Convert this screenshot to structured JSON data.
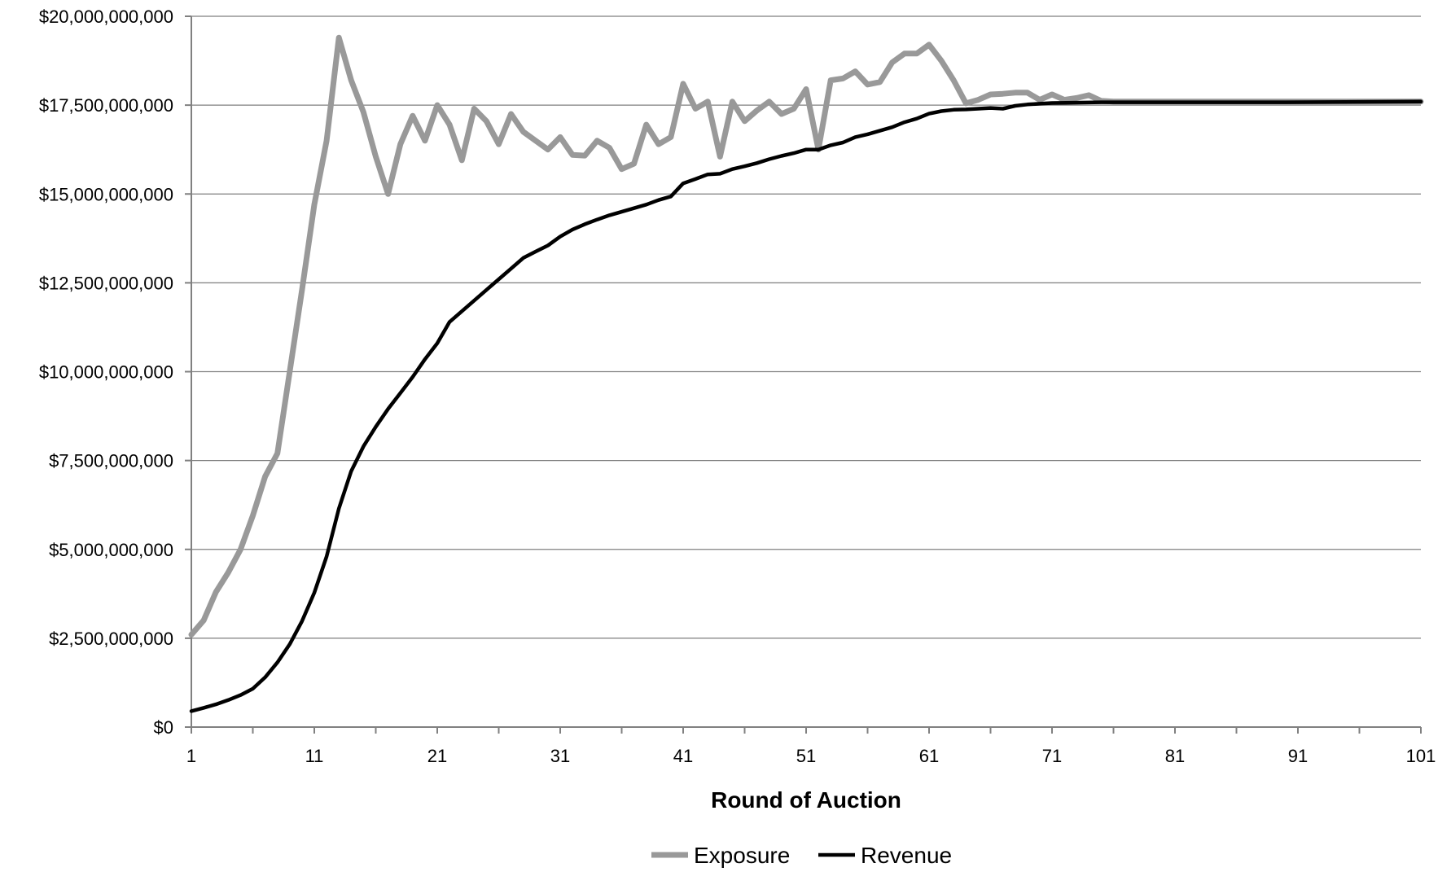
{
  "chart_data": {
    "type": "line",
    "title": "",
    "xlabel": "Round of Auction",
    "ylabel": "",
    "x_ticks": [
      "1",
      "11",
      "21",
      "31",
      "41",
      "51",
      "61",
      "71",
      "81",
      "91",
      "101"
    ],
    "y_ticks": [
      "$0",
      "$2,500,000,000",
      "$5,000,000,000",
      "$7,500,000,000",
      "$10,000,000,000",
      "$12,500,000,000",
      "$15,000,000,000",
      "$17,500,000,000",
      "$20,000,000,000"
    ],
    "xlim": [
      1,
      101
    ],
    "ylim": [
      0,
      20000000000
    ],
    "grid": "horizontal",
    "legend_position": "bottom",
    "series": [
      {
        "name": "Exposure",
        "color": "#999999",
        "x": [
          1,
          2,
          3,
          4,
          5,
          6,
          7,
          8,
          9,
          10,
          11,
          12,
          13,
          14,
          15,
          16,
          17,
          18,
          19,
          20,
          21,
          22,
          23,
          24,
          25,
          26,
          27,
          28,
          29,
          30,
          31,
          32,
          33,
          34,
          35,
          36,
          37,
          38,
          39,
          40,
          41,
          42,
          43,
          44,
          45,
          46,
          47,
          48,
          49,
          50,
          51,
          52,
          53,
          54,
          55,
          56,
          57,
          58,
          59,
          60,
          61,
          62,
          63,
          64,
          65,
          66,
          67,
          68,
          69,
          70,
          71,
          72,
          73,
          74,
          75,
          76,
          80,
          85,
          90,
          95,
          101
        ],
        "values": [
          2600000000,
          3000000000,
          3800000000,
          4350000000,
          5000000000,
          5950000000,
          7050000000,
          7700000000,
          10000000000,
          12300000000,
          14700000000,
          16500000000,
          19400000000,
          18200000000,
          17300000000,
          16050000000,
          15000000000,
          16400000000,
          17200000000,
          16500000000,
          17500000000,
          16950000000,
          15950000000,
          17400000000,
          17050000000,
          16400000000,
          17250000000,
          16750000000,
          16500000000,
          16250000000,
          16600000000,
          16100000000,
          16080000000,
          16500000000,
          16300000000,
          15700000000,
          15850000000,
          16950000000,
          16400000000,
          16600000000,
          18100000000,
          17400000000,
          17600000000,
          16050000000,
          17600000000,
          17050000000,
          17350000000,
          17600000000,
          17250000000,
          17400000000,
          17950000000,
          16250000000,
          18200000000,
          18250000000,
          18450000000,
          18080000000,
          18150000000,
          18700000000,
          18950000000,
          18950000000,
          19200000000,
          18750000000,
          18200000000,
          17550000000,
          17650000000,
          17800000000,
          17820000000,
          17850000000,
          17850000000,
          17650000000,
          17800000000,
          17650000000,
          17700000000,
          17780000000,
          17620000000,
          17600000000,
          17600000000,
          17600000000,
          17600000000,
          17600000000,
          17600000000
        ]
      },
      {
        "name": "Revenue",
        "color": "#000000",
        "x": [
          1,
          2,
          3,
          4,
          5,
          6,
          7,
          8,
          9,
          10,
          11,
          12,
          13,
          14,
          15,
          16,
          17,
          18,
          19,
          20,
          21,
          22,
          23,
          24,
          25,
          26,
          27,
          28,
          29,
          30,
          31,
          32,
          33,
          34,
          35,
          36,
          37,
          38,
          39,
          40,
          41,
          42,
          43,
          44,
          45,
          46,
          47,
          48,
          49,
          50,
          51,
          52,
          53,
          54,
          55,
          56,
          57,
          58,
          59,
          60,
          61,
          62,
          63,
          64,
          65,
          66,
          67,
          68,
          69,
          70,
          71,
          75,
          80,
          90,
          101
        ],
        "values": [
          450000000,
          540000000,
          640000000,
          760000000,
          900000000,
          1080000000,
          1400000000,
          1820000000,
          2330000000,
          2980000000,
          3780000000,
          4800000000,
          6150000000,
          7200000000,
          7900000000,
          8450000000,
          8950000000,
          9400000000,
          9850000000,
          10350000000,
          10800000000,
          11400000000,
          11700000000,
          12000000000,
          12300000000,
          12600000000,
          12900000000,
          13200000000,
          13380000000,
          13550000000,
          13800000000,
          14000000000,
          14150000000,
          14280000000,
          14400000000,
          14500000000,
          14600000000,
          14700000000,
          14830000000,
          14930000000,
          15300000000,
          15420000000,
          15550000000,
          15570000000,
          15700000000,
          15780000000,
          15870000000,
          15980000000,
          16070000000,
          16150000000,
          16250000000,
          16250000000,
          16370000000,
          16450000000,
          16600000000,
          16680000000,
          16780000000,
          16880000000,
          17020000000,
          17120000000,
          17260000000,
          17330000000,
          17370000000,
          17380000000,
          17400000000,
          17420000000,
          17400000000,
          17480000000,
          17520000000,
          17540000000,
          17560000000,
          17580000000,
          17580000000,
          17580000000,
          17600000000
        ]
      }
    ]
  }
}
